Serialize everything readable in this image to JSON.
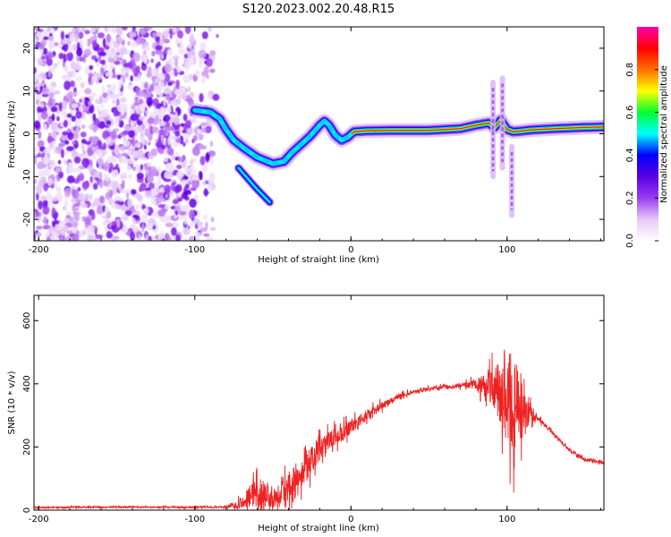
{
  "title": "S120.2023.002.20.48.R15",
  "chart_data": [
    {
      "type": "heatmap",
      "xlabel": "Height of straight line (km)",
      "ylabel": "Frequency (Hz)",
      "xlim": [
        -203,
        162
      ],
      "ylim": [
        -25,
        25
      ],
      "xticks": [
        -200,
        -100,
        0,
        100
      ],
      "yticks": [
        -20,
        -10,
        0,
        10,
        20
      ],
      "colorbar": {
        "label": "Normalized spectral amplitude",
        "range": [
          0,
          1
        ],
        "ticks": [
          0.0,
          0.2,
          0.4,
          0.6,
          0.8
        ],
        "tick_labels": [
          "0.0",
          "0.2",
          "0.4",
          "0.6",
          "0.8"
        ],
        "colormap": "white-violet-blue-cyan-green-yellow-red-magenta",
        "colors": [
          "#ffffff",
          "#e6c8f5",
          "#9a3cf0",
          "#5a00e0",
          "#0000ff",
          "#00ffff",
          "#00ff30",
          "#ffff00",
          "#ff7000",
          "#ff0000",
          "#ff00b0"
        ]
      },
      "noise_region_x": [
        -203,
        -82
      ],
      "ridge": {
        "x": [
          -100,
          -90,
          -84,
          -80,
          -75,
          -68,
          -60,
          -50,
          -43,
          -38,
          -32,
          -26,
          -20,
          -17,
          -14,
          -10,
          -6,
          -2,
          2,
          10,
          30,
          50,
          70,
          80,
          88,
          92,
          96,
          100,
          104,
          108,
          115,
          130,
          150,
          162
        ],
        "freq_hz": [
          5.5,
          5,
          3.5,
          1,
          -1.5,
          -3.5,
          -5.5,
          -7,
          -6.5,
          -4.5,
          -2.5,
          -0.5,
          2,
          3,
          2,
          -0.3,
          -1.5,
          -0.8,
          0.5,
          0.7,
          0.8,
          0.8,
          1.2,
          2,
          2.5,
          1.5,
          3.2,
          1,
          0.5,
          0.6,
          0.9,
          1.2,
          1.5,
          1.6
        ]
      },
      "secondary_branch": {
        "x": [
          -72,
          -66,
          -60,
          -56,
          -52
        ],
        "freq_hz": [
          -8,
          -10.5,
          -13,
          -14.5,
          -16
        ]
      },
      "spike_features": [
        {
          "x": 91,
          "freq_range_hz": [
            -10,
            12
          ]
        },
        {
          "x": 97,
          "freq_range_hz": [
            -8,
            13
          ]
        },
        {
          "x": 103,
          "freq_range_hz": [
            -19,
            -3
          ]
        }
      ]
    },
    {
      "type": "line",
      "xlabel": "Height of straight line (km)",
      "ylabel": "SNR (10 * v/v)",
      "xlim": [
        -203,
        162
      ],
      "ylim": [
        0,
        680
      ],
      "xticks": [
        -200,
        -100,
        0,
        100
      ],
      "yticks": [
        0,
        200,
        400,
        600
      ],
      "color": "#ee2222",
      "series": [
        {
          "x": [
            -203,
            -150,
            -100,
            -80,
            -70,
            -60,
            -50,
            -40,
            -30,
            -20,
            -10,
            0,
            10,
            20,
            30,
            40,
            50,
            60,
            70,
            80,
            90,
            95,
            100,
            105,
            110,
            115,
            120,
            130,
            140,
            150,
            162
          ],
          "baseline": [
            8,
            10,
            9,
            10,
            25,
            60,
            40,
            80,
            130,
            190,
            230,
            260,
            300,
            330,
            360,
            375,
            385,
            390,
            395,
            400,
            390,
            380,
            360,
            330,
            320,
            310,
            290,
            240,
            190,
            160,
            150
          ],
          "noise_amp": [
            4,
            4,
            4,
            6,
            40,
            90,
            70,
            90,
            90,
            80,
            60,
            45,
            35,
            25,
            15,
            12,
            10,
            12,
            15,
            30,
            120,
            200,
            300,
            300,
            200,
            60,
            15,
            12,
            10,
            10,
            10
          ]
        }
      ]
    }
  ]
}
